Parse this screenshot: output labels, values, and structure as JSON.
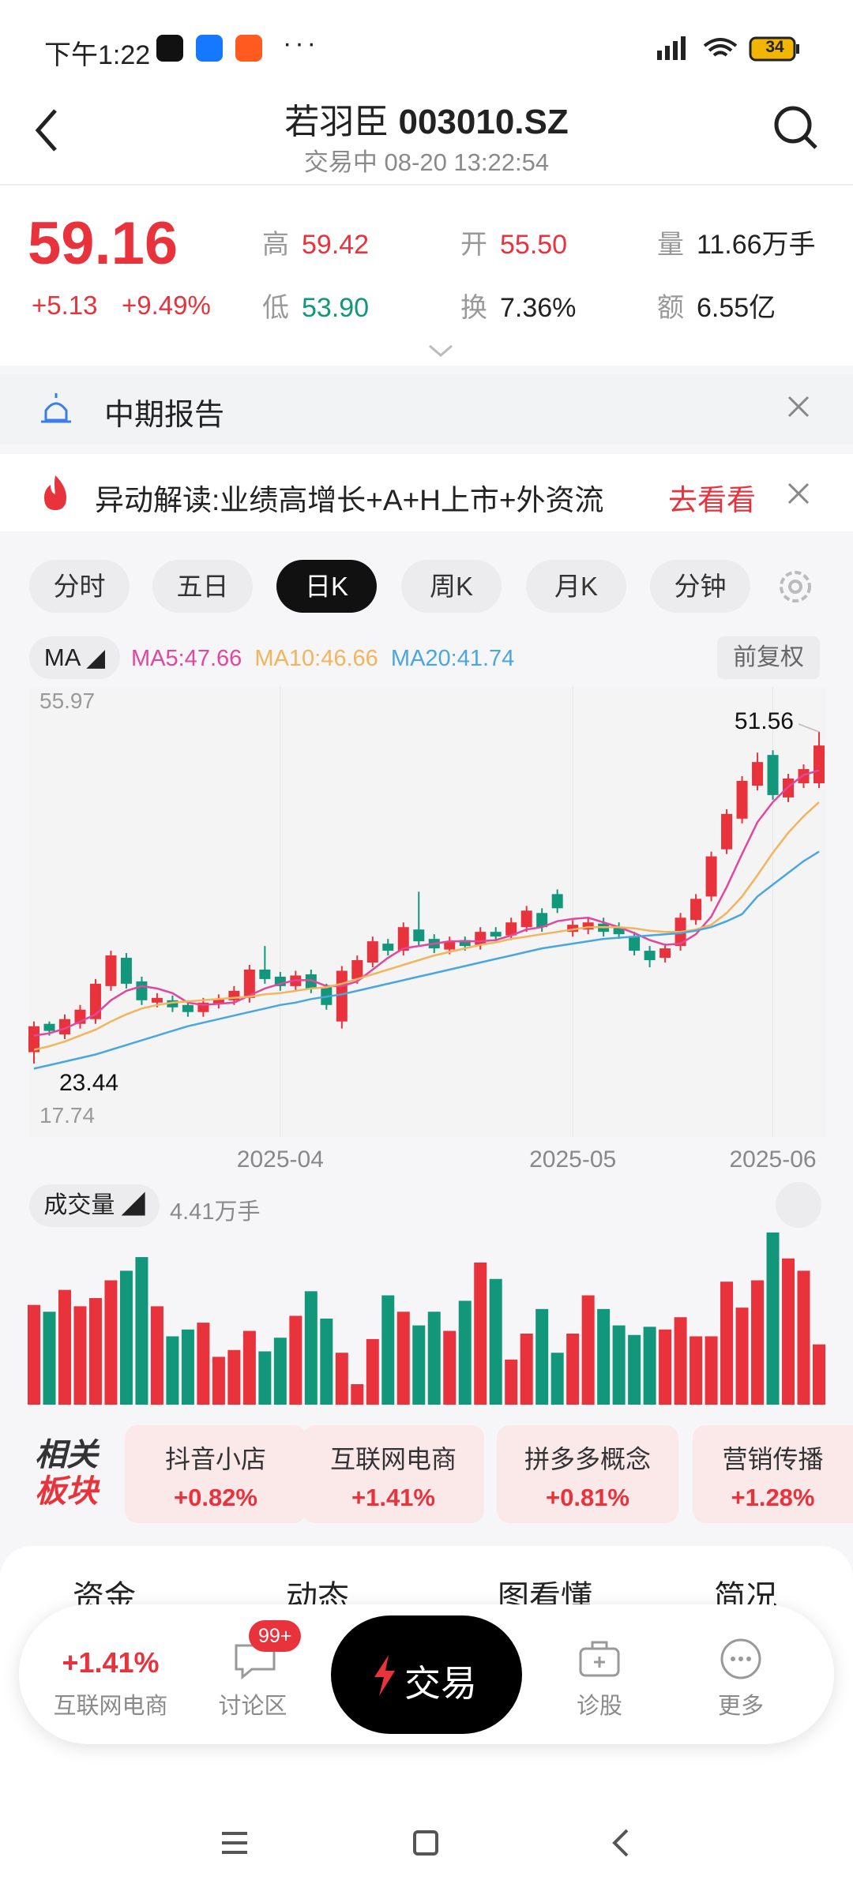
{
  "status_bar": {
    "time": "下午1:22",
    "battery": "34"
  },
  "header": {
    "name": "若羽臣",
    "code": "003010.SZ",
    "subtitle": "交易中 08-20 13:22:54"
  },
  "quote": {
    "price": "59.16",
    "change": "+5.13",
    "change_pct": "+9.49%",
    "stats": [
      {
        "label": "高",
        "value": "59.42"
      },
      {
        "label": "开",
        "value": "55.50"
      },
      {
        "label": "量",
        "value": "11.66万手"
      },
      {
        "label": "低",
        "value": "53.90"
      },
      {
        "label": "换",
        "value": "7.36%"
      },
      {
        "label": "额",
        "value": "6.55亿"
      }
    ]
  },
  "notices": [
    {
      "text": "中期报告"
    },
    {
      "text": "异动解读:业绩高增长+A+H上市+外资流",
      "action": "去看看"
    }
  ],
  "period_tabs": {
    "items": [
      "分时",
      "五日",
      "日K",
      "周K",
      "月K",
      "分钟"
    ],
    "active": 2
  },
  "indicator": {
    "button": "MA",
    "adjust": "前复权"
  },
  "volume_header": {
    "button": "成交量",
    "value": "4.41万手"
  },
  "sectors": {
    "title": [
      "相关",
      "板块"
    ],
    "items": [
      {
        "name": "抖音小店",
        "change": "+0.82%"
      },
      {
        "name": "互联网电商",
        "change": "+1.41%"
      },
      {
        "name": "拼多多概念",
        "change": "+0.81%"
      },
      {
        "name": "营销传播",
        "change": "+1.28%"
      }
    ]
  },
  "detail_tabs": [
    "资金",
    "动态",
    "图看懂",
    "简况"
  ],
  "bottom_nav": {
    "sector_change": "+1.41%",
    "sector_name": "互联网电商",
    "discuss": "讨论区",
    "badge": "99+",
    "trade": "交易",
    "diagnose": "诊股",
    "more": "更多"
  },
  "chart_data": [
    {
      "type": "candlestick",
      "categories": [
        null,
        null,
        null,
        null,
        null,
        null,
        null,
        null,
        null,
        null,
        null,
        null,
        null,
        null,
        null,
        null,
        "2025-04",
        null,
        null,
        null,
        null,
        null,
        null,
        null,
        null,
        null,
        null,
        null,
        null,
        null,
        null,
        null,
        null,
        null,
        null,
        "2025-05",
        null,
        null,
        null,
        null,
        null,
        null,
        null,
        null,
        null,
        null,
        null,
        null,
        "2025-06",
        null,
        null,
        null
      ],
      "open": [
        24.4,
        26.8,
        25.9,
        26.8,
        27.2,
        30.0,
        32.4,
        30.4,
        28.6,
        28.8,
        28.4,
        27.8,
        28.5,
        28.8,
        29.0,
        31.4,
        30.8,
        30.0,
        31.0,
        29.9,
        27.0,
        30.6,
        32.0,
        33.6,
        33.0,
        34.8,
        34.0,
        33.1,
        33.9,
        33.5,
        34.6,
        34.3,
        35.0,
        36.2,
        37.8,
        34.6,
        34.8,
        35.3,
        35.0,
        34.2,
        33.0,
        32.4,
        33.4,
        35.6,
        37.6,
        41.6,
        44.2,
        47.0,
        49.6,
        46.0,
        47.2,
        47.2
      ],
      "close": [
        26.6,
        26.2,
        27.2,
        28.0,
        30.2,
        32.6,
        30.2,
        28.8,
        29.0,
        28.2,
        27.8,
        28.6,
        28.9,
        29.6,
        31.4,
        30.6,
        30.0,
        30.9,
        29.8,
        28.4,
        31.3,
        32.2,
        33.8,
        33.0,
        35.0,
        33.8,
        33.2,
        33.8,
        33.4,
        34.6,
        34.2,
        35.4,
        36.4,
        35.0,
        36.6,
        35.2,
        35.4,
        34.6,
        34.4,
        33.0,
        32.2,
        33.2,
        35.8,
        37.4,
        41.0,
        44.6,
        47.4,
        49.0,
        46.2,
        47.6,
        48.4,
        50.4
      ],
      "high": [
        27.0,
        27.0,
        27.6,
        28.4,
        30.6,
        33.0,
        32.8,
        30.8,
        29.4,
        29.2,
        28.8,
        29.0,
        29.3,
        30.0,
        31.8,
        33.4,
        31.2,
        31.3,
        31.4,
        30.2,
        31.7,
        32.6,
        34.2,
        34.0,
        35.4,
        38.0,
        34.4,
        34.2,
        34.2,
        35.0,
        35.0,
        35.8,
        36.8,
        36.6,
        38.2,
        35.6,
        35.8,
        35.8,
        35.4,
        34.6,
        33.4,
        33.6,
        36.2,
        37.8,
        41.4,
        45.0,
        47.8,
        49.8,
        50.0,
        48.0,
        48.8,
        51.56
      ],
      "low": [
        23.44,
        25.8,
        25.5,
        26.4,
        26.8,
        29.6,
        29.8,
        28.4,
        28.2,
        27.8,
        27.4,
        27.4,
        28.1,
        28.4,
        28.6,
        30.2,
        29.6,
        29.6,
        29.4,
        28.0,
        26.4,
        30.2,
        31.6,
        32.6,
        32.6,
        33.4,
        32.8,
        32.7,
        33.0,
        33.1,
        33.8,
        33.9,
        34.6,
        34.6,
        36.2,
        34.2,
        34.4,
        34.2,
        34.0,
        32.6,
        31.6,
        32.0,
        33.0,
        35.2,
        37.2,
        41.2,
        43.8,
        46.6,
        45.8,
        45.6,
        46.8,
        46.8
      ],
      "ylim": [
        17.74,
        55.97
      ],
      "colors": {
        "up": "#e8323c",
        "down": "#12977a"
      },
      "series": [
        {
          "name": "MA5:47.66",
          "color": "#e0479e",
          "values": [
            25.8,
            26.0,
            26.4,
            27.0,
            27.6,
            28.8,
            29.6,
            30.0,
            29.8,
            29.4,
            28.6,
            28.4,
            28.5,
            28.6,
            29.2,
            29.8,
            30.2,
            30.5,
            30.5,
            30.0,
            30.0,
            30.4,
            31.4,
            32.4,
            33.2,
            33.4,
            33.6,
            33.8,
            33.8,
            33.8,
            33.9,
            34.3,
            34.8,
            35.0,
            35.5,
            35.7,
            35.8,
            35.4,
            35.0,
            34.5,
            33.9,
            33.5,
            33.6,
            34.4,
            35.9,
            38.4,
            41.2,
            43.9,
            45.6,
            46.9,
            47.9,
            48.3
          ]
        },
        {
          "name": "MA10:46.66",
          "color": "#f2b45c",
          "values": [
            24.6,
            24.9,
            25.3,
            25.8,
            26.3,
            27.0,
            27.6,
            28.1,
            28.4,
            28.6,
            28.7,
            28.8,
            28.9,
            29.0,
            29.1,
            29.3,
            29.4,
            29.6,
            29.8,
            29.9,
            30.2,
            30.6,
            31.0,
            31.4,
            31.8,
            32.2,
            32.6,
            32.9,
            33.2,
            33.5,
            33.7,
            34.0,
            34.2,
            34.4,
            34.6,
            34.8,
            35.0,
            35.0,
            35.0,
            34.9,
            34.7,
            34.6,
            34.6,
            34.8,
            35.2,
            36.2,
            37.6,
            39.4,
            41.3,
            43.0,
            44.4,
            45.6
          ]
        },
        {
          "name": "MA20:41.74",
          "color": "#4aa6e0",
          "values": [
            23.0,
            23.3,
            23.6,
            23.9,
            24.2,
            24.6,
            25.0,
            25.4,
            25.8,
            26.2,
            26.6,
            26.9,
            27.2,
            27.5,
            27.8,
            28.1,
            28.4,
            28.6,
            28.9,
            29.1,
            29.3,
            29.6,
            29.9,
            30.2,
            30.5,
            30.8,
            31.1,
            31.4,
            31.7,
            32.0,
            32.3,
            32.6,
            32.9,
            33.2,
            33.4,
            33.6,
            33.8,
            34.0,
            34.1,
            34.2,
            34.3,
            34.4,
            34.5,
            34.7,
            35.0,
            35.5,
            36.1,
            37.6,
            38.6,
            39.6,
            40.6,
            41.4
          ]
        }
      ]
    },
    {
      "type": "bar",
      "values": [
        7.3,
        6.8,
        8.4,
        7.2,
        7.8,
        9.1,
        9.8,
        10.8,
        7.2,
        5.0,
        5.5,
        6.0,
        3.5,
        4.0,
        5.4,
        3.9,
        4.9,
        6.5,
        8.3,
        6.3,
        3.8,
        1.5,
        4.8,
        8.0,
        6.8,
        5.8,
        6.8,
        5.4,
        7.6,
        10.4,
        9.2,
        3.3,
        5.2,
        7.0,
        3.8,
        5.2,
        8.0,
        7.0,
        5.8,
        5.1,
        5.7,
        5.5,
        6.4,
        5.0,
        5.0,
        9.0,
        7.1,
        9.1,
        12.6,
        10.7,
        9.8,
        4.41
      ],
      "ylim": [
        0,
        13
      ]
    }
  ]
}
